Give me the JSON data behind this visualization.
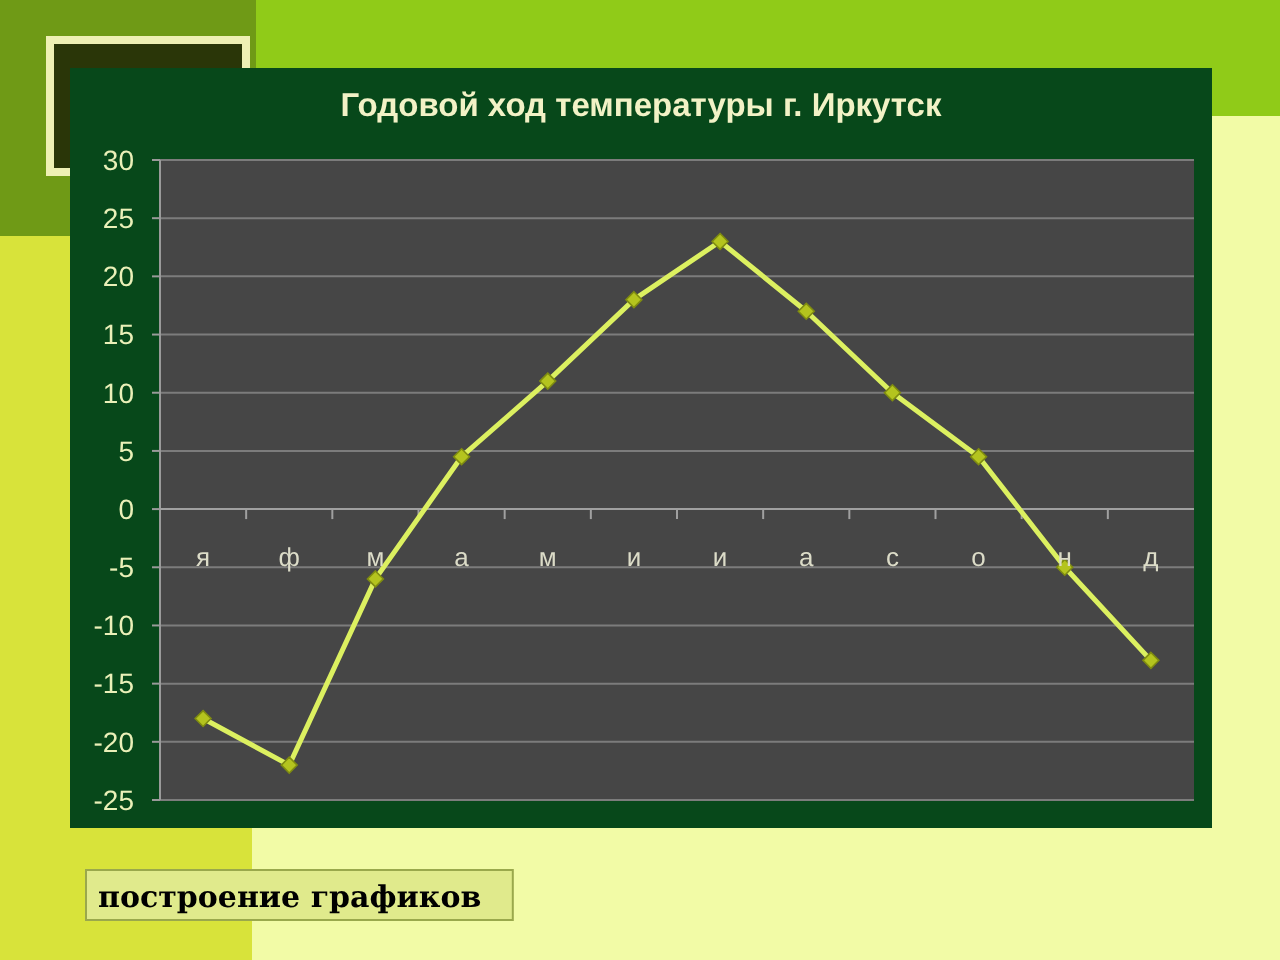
{
  "chart_data": {
    "type": "line",
    "title": "Годовой ход температуры г. Иркутск",
    "categories": [
      "я",
      "ф",
      "м",
      "а",
      "м",
      "и",
      "и",
      "а",
      "с",
      "о",
      "н",
      "д"
    ],
    "values": [
      -18,
      -22,
      -6,
      4.5,
      11,
      18,
      23,
      17,
      10,
      4.5,
      -5,
      -13
    ],
    "color": "#dcf060",
    "ylim": [
      -25,
      30
    ],
    "yticks": [
      -25,
      -20,
      -15,
      -10,
      -5,
      0,
      5,
      10,
      15,
      20,
      25,
      30
    ],
    "grid": "y",
    "marker": "diamond",
    "annotations": [
      "построение графиков"
    ]
  }
}
